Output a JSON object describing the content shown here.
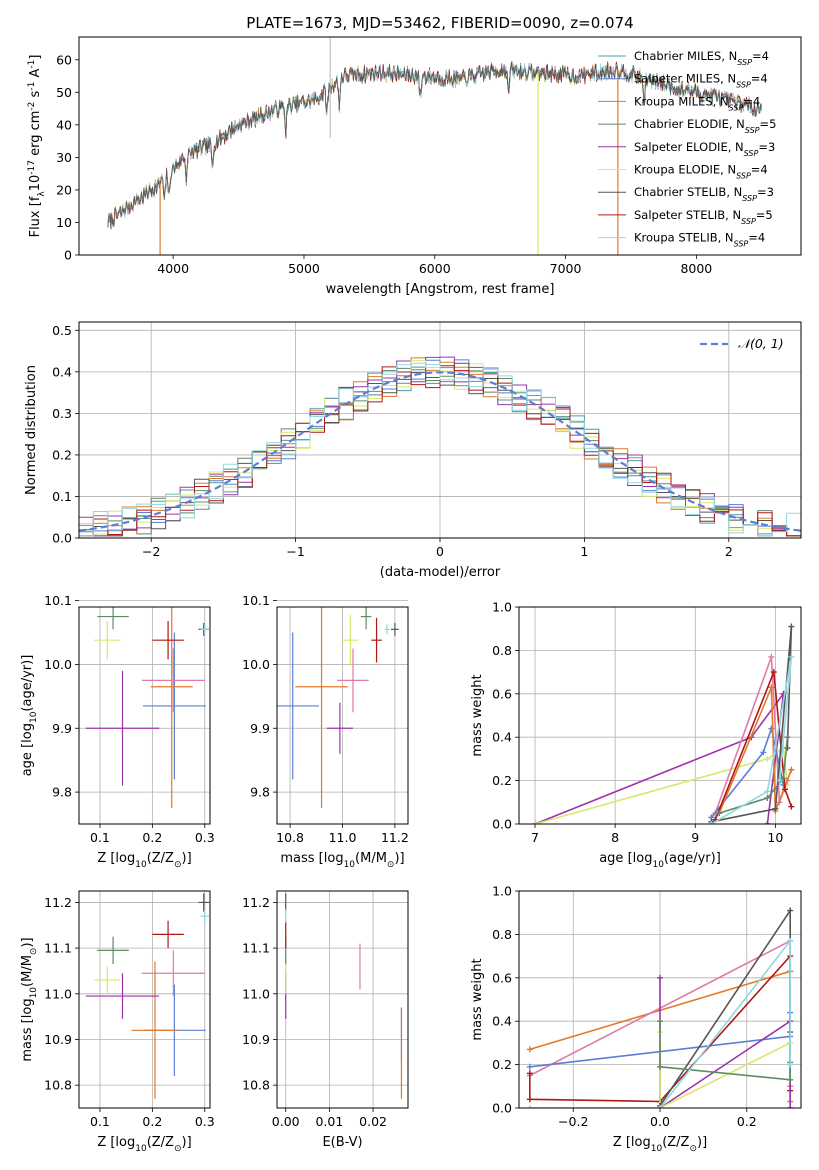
{
  "figure_title": "PLATE=1673, MJD=53462, FIBERID=0090, z=0.074",
  "series": [
    {
      "name": "Chabrier MILES, N$_{SSP}$=4",
      "label_main": "Chabrier MILES, N",
      "label_sub": "SSP",
      "label_tail": "=4",
      "color": "#4c9aa0"
    },
    {
      "name": "Salpeter MILES, N$_{SSP}$=4",
      "label_main": "Salpeter MILES, N",
      "label_sub": "SSP",
      "label_tail": "=4",
      "color": "#5a7fd6"
    },
    {
      "name": "Kroupa MILES, N$_{SSP}$=4",
      "label_main": "Kroupa MILES, N",
      "label_sub": "SSP",
      "label_tail": "=4",
      "color": "#e07a2a"
    },
    {
      "name": "Chabrier ELODIE, N$_{SSP}$=5",
      "label_main": "Chabrier ELODIE, N",
      "label_sub": "SSP",
      "label_tail": "=5",
      "color": "#5f8a66"
    },
    {
      "name": "Salpeter ELODIE, N$_{SSP}$=3",
      "label_main": "Salpeter ELODIE, N",
      "label_sub": "SSP",
      "label_tail": "=3",
      "color": "#9b35a8"
    },
    {
      "name": "Kroupa ELODIE, N$_{SSP}$=4",
      "label_main": "Kroupa ELODIE, N",
      "label_sub": "SSP",
      "label_tail": "=4",
      "color": "#d9e86a"
    },
    {
      "name": "Chabrier STELIB, N$_{SSP}$=3",
      "label_main": "Chabrier STELIB, N",
      "label_sub": "SSP",
      "label_tail": "=3",
      "color": "#555555"
    },
    {
      "name": "Salpeter STELIB, N$_{SSP}$=5",
      "label_main": "Salpeter STELIB, N",
      "label_sub": "SSP",
      "label_tail": "=5",
      "color": "#b01818"
    },
    {
      "name": "Kroupa STELIB, N$_{SSP}$=4",
      "label_main": "Kroupa STELIB, N",
      "label_sub": "SSP",
      "label_tail": "=4",
      "color": "#8fd8e0"
    }
  ],
  "chart_data": [
    {
      "id": "spectrum",
      "type": "line",
      "xlabel": "wavelength [Angstrom, rest frame]",
      "ylabel": "Flux [f$_\\lambda$10$^{-17}$ erg cm$^{-2}$ s$^{-1}$ A$^{-1}$]",
      "xlim": [
        3280,
        8800
      ],
      "ylim": [
        0,
        67
      ],
      "xticks": [
        4000,
        5000,
        6000,
        7000,
        8000
      ],
      "yticks": [
        0,
        10,
        20,
        30,
        40,
        50,
        60
      ],
      "grid": false,
      "legend": "upper right",
      "continuum_x": [
        3500,
        3700,
        3900,
        4100,
        4300,
        4500,
        4800,
        5100,
        5300,
        5600,
        5900,
        6200,
        6500,
        6800,
        7100,
        7400,
        7700,
        8000,
        8300,
        8500
      ],
      "continuum_y": [
        10,
        16,
        22,
        31,
        34,
        40,
        45,
        48,
        55,
        56,
        55,
        54,
        57,
        56,
        55,
        57,
        53,
        50,
        47,
        45
      ],
      "model_dropouts": [
        {
          "series": "Kroupa MILES, N$_{SSP}$=4",
          "x": 3900
        },
        {
          "series": "Kroupa ELODIE, N$_{SSP}$=4",
          "x": 6790
        },
        {
          "series": "Kroupa MILES, N$_{SSP}$=4",
          "x": 7400
        }
      ],
      "vertical_marker_x": 5200
    },
    {
      "id": "residual_histogram",
      "type": "step",
      "xlabel": "(data-model)/error",
      "ylabel": "Normed distribution",
      "xlim": [
        -2.5,
        2.5
      ],
      "ylim": [
        0,
        0.52
      ],
      "xticks": [
        -2,
        -1,
        0,
        1,
        2
      ],
      "yticks": [
        0.0,
        0.1,
        0.2,
        0.3,
        0.4,
        0.5
      ],
      "grid": true,
      "legend": "upper right",
      "reference_curve": {
        "name": "$\\mathcal{N}(0,1)$",
        "label_text": "𝒩(0, 1)",
        "mean": 0,
        "std": 1,
        "color": "#5a7fd6"
      },
      "bin_width": 0.1
    },
    {
      "id": "z_vs_age",
      "type": "scatter",
      "xlabel": "Z [log$_{10}$(Z/Z$_\\odot$)]",
      "ylabel": "age  [log$_{10}$(age/yr)]",
      "xlim": [
        0.06,
        0.31
      ],
      "ylim": [
        9.75,
        10.09
      ],
      "xticks": [
        0.1,
        0.2,
        0.3
      ],
      "yticks": [
        9.8,
        9.9,
        10.0,
        10.1
      ],
      "grid": true,
      "points": [
        {
          "x": 0.242,
          "y": 9.935,
          "xerr": 0.06,
          "yerr": 0.115,
          "color": "#5a7fd6"
        },
        {
          "x": 0.237,
          "y": 9.965,
          "xerr": 0.04,
          "yerr": 0.19,
          "color": "#e07a2a"
        },
        {
          "x": 0.24,
          "y": 9.975,
          "xerr": 0.06,
          "yerr": 0.05,
          "color": "#e07aa8"
        },
        {
          "x": 0.143,
          "y": 9.9,
          "xerr": 0.07,
          "yerr": 0.09,
          "color": "#9b35a8"
        },
        {
          "x": 0.114,
          "y": 10.038,
          "xerr": 0.025,
          "yerr": 0.03,
          "color": "#d9e86a"
        },
        {
          "x": 0.125,
          "y": 10.075,
          "xerr": 0.03,
          "yerr": 0.02,
          "color": "#5f8a66"
        },
        {
          "x": 0.23,
          "y": 10.038,
          "xerr": 0.03,
          "yerr": 0.03,
          "color": "#b01818"
        },
        {
          "x": 0.298,
          "y": 10.055,
          "xerr": 0.01,
          "yerr": 0.01,
          "color": "#555555"
        },
        {
          "x": 0.3,
          "y": 10.055,
          "xerr": 0.008,
          "yerr": 0.008,
          "color": "#8fd8e0"
        }
      ]
    },
    {
      "id": "mass_vs_age",
      "type": "scatter",
      "xlabel": "mass [log$_{10}$(M/M$_\\odot$)]",
      "ylabel": "",
      "xlim": [
        10.75,
        11.25
      ],
      "ylim": [
        9.75,
        10.09
      ],
      "xticks": [
        10.8,
        11.0,
        11.2
      ],
      "yticks": [
        9.8,
        9.9,
        10.0,
        10.1
      ],
      "grid": true,
      "points": [
        {
          "x": 10.81,
          "y": 9.935,
          "xerr": 0.1,
          "yerr": 0.115,
          "color": "#5a7fd6"
        },
        {
          "x": 10.92,
          "y": 9.965,
          "xerr": 0.1,
          "yerr": 0.19,
          "color": "#e07a2a"
        },
        {
          "x": 11.04,
          "y": 9.975,
          "xerr": 0.06,
          "yerr": 0.05,
          "color": "#e07aa8"
        },
        {
          "x": 10.99,
          "y": 9.9,
          "xerr": 0.05,
          "yerr": 0.04,
          "color": "#9b35a8"
        },
        {
          "x": 11.03,
          "y": 10.038,
          "xerr": 0.03,
          "yerr": 0.04,
          "color": "#d9e86a"
        },
        {
          "x": 11.09,
          "y": 10.075,
          "xerr": 0.02,
          "yerr": 0.02,
          "color": "#5f8a66"
        },
        {
          "x": 11.13,
          "y": 10.038,
          "xerr": 0.02,
          "yerr": 0.035,
          "color": "#b01818"
        },
        {
          "x": 11.2,
          "y": 10.055,
          "xerr": 0.015,
          "yerr": 0.01,
          "color": "#555555"
        },
        {
          "x": 11.17,
          "y": 10.055,
          "xerr": 0.01,
          "yerr": 0.008,
          "color": "#8fd8e0"
        }
      ]
    },
    {
      "id": "age_vs_weight",
      "type": "line",
      "xlabel": "age  [log$_{10}$(age/yr)]",
      "ylabel": "mass weight",
      "xlim": [
        6.8,
        10.32
      ],
      "ylim": [
        0,
        1.0
      ],
      "xticks": [
        7,
        8,
        9,
        10
      ],
      "yticks": [
        0.0,
        0.2,
        0.4,
        0.6,
        0.8,
        1.0
      ],
      "grid": true,
      "lines": [
        {
          "color": "#9b35a8",
          "x": [
            7.0,
            9.7,
            10.1,
            9.9
          ],
          "y": [
            0.0,
            0.4,
            0.6,
            0.0
          ]
        },
        {
          "color": "#d9e86a",
          "x": [
            7.0,
            9.9,
            10.1,
            10.15
          ],
          "y": [
            0.0,
            0.3,
            0.35,
            0.18
          ]
        },
        {
          "color": "#e07aa8",
          "x": [
            9.25,
            9.95,
            10.05,
            10.15
          ],
          "y": [
            0.05,
            0.77,
            0.1,
            0.2
          ]
        },
        {
          "color": "#5a7fd6",
          "x": [
            9.2,
            9.85,
            9.95,
            10.1
          ],
          "y": [
            0.03,
            0.33,
            0.44,
            0.18
          ]
        },
        {
          "color": "#e07a2a",
          "x": [
            9.3,
            9.95,
            10.0,
            10.2
          ],
          "y": [
            0.05,
            0.63,
            0.06,
            0.25
          ]
        },
        {
          "color": "#b01818",
          "x": [
            9.25,
            9.98,
            10.12,
            10.2
          ],
          "y": [
            0.02,
            0.7,
            0.16,
            0.08
          ]
        },
        {
          "color": "#555555",
          "x": [
            9.2,
            10.0,
            10.2,
            10.15
          ],
          "y": [
            0.01,
            0.07,
            0.91,
            0.35
          ]
        },
        {
          "color": "#5f8a66",
          "x": [
            9.3,
            9.9,
            10.1,
            10.15
          ],
          "y": [
            0.05,
            0.12,
            0.21,
            0.4
          ]
        },
        {
          "color": "#8fd8e0",
          "x": [
            9.2,
            9.9,
            10.2,
            10.05
          ],
          "y": [
            0.0,
            0.15,
            0.77,
            0.2
          ]
        }
      ]
    },
    {
      "id": "z_vs_mass",
      "type": "scatter",
      "xlabel": "Z [log$_{10}$(Z/Z$_\\odot$)]",
      "ylabel": "mass [log$_{10}$(M/M$_\\odot$)]",
      "xlim": [
        0.06,
        0.31
      ],
      "ylim": [
        10.75,
        11.225
      ],
      "xticks": [
        0.1,
        0.2,
        0.3
      ],
      "yticks": [
        10.8,
        10.9,
        11.0,
        11.1,
        11.2
      ],
      "grid": true,
      "points": [
        {
          "x": 0.242,
          "y": 10.92,
          "xerr": 0.06,
          "yerr": 0.1,
          "color": "#5a7fd6"
        },
        {
          "x": 0.205,
          "y": 10.92,
          "xerr": 0.045,
          "yerr": 0.15,
          "color": "#e07a2a"
        },
        {
          "x": 0.24,
          "y": 11.045,
          "xerr": 0.06,
          "yerr": 0.05,
          "color": "#e07aa8"
        },
        {
          "x": 0.143,
          "y": 10.995,
          "xerr": 0.07,
          "yerr": 0.05,
          "color": "#9b35a8"
        },
        {
          "x": 0.114,
          "y": 11.03,
          "xerr": 0.025,
          "yerr": 0.03,
          "color": "#d9e86a"
        },
        {
          "x": 0.125,
          "y": 11.095,
          "xerr": 0.03,
          "yerr": 0.03,
          "color": "#5f8a66"
        },
        {
          "x": 0.23,
          "y": 11.13,
          "xerr": 0.03,
          "yerr": 0.03,
          "color": "#b01818"
        },
        {
          "x": 0.298,
          "y": 11.2,
          "xerr": 0.01,
          "yerr": 0.02,
          "color": "#555555"
        },
        {
          "x": 0.3,
          "y": 11.17,
          "xerr": 0.008,
          "yerr": 0.015,
          "color": "#8fd8e0"
        }
      ]
    },
    {
      "id": "ebv_vs_mass",
      "type": "scatter",
      "xlabel": "E(B-V)",
      "ylabel": "",
      "xlim": [
        -0.002,
        0.028
      ],
      "ylim": [
        10.75,
        11.225
      ],
      "xticks": [
        0.0,
        0.01,
        0.02
      ],
      "yticks": [
        10.8,
        10.9,
        11.0,
        11.1,
        11.2
      ],
      "grid": true,
      "points": [
        {
          "x": 0.0265,
          "y": 10.91,
          "xerr": 0,
          "yerr": 0.06,
          "color": "#5a7fd6"
        },
        {
          "x": 0.0265,
          "y": 10.87,
          "xerr": 0,
          "yerr": 0.1,
          "color": "#e07a2a"
        },
        {
          "x": 0.017,
          "y": 11.06,
          "xerr": 0,
          "yerr": 0.05,
          "color": "#e07aa8"
        },
        {
          "x": 0.0,
          "y": 10.995,
          "xerr": 0,
          "yerr": 0.05,
          "color": "#9b35a8"
        },
        {
          "x": 0.0,
          "y": 11.03,
          "xerr": 0,
          "yerr": 0.03,
          "color": "#d9e86a"
        },
        {
          "x": 0.0,
          "y": 11.095,
          "xerr": 0,
          "yerr": 0.03,
          "color": "#5f8a66"
        },
        {
          "x": 0.0,
          "y": 11.13,
          "xerr": 0,
          "yerr": 0.03,
          "color": "#b01818"
        },
        {
          "x": 0.0,
          "y": 11.2,
          "xerr": 0,
          "yerr": 0.02,
          "color": "#555555"
        },
        {
          "x": 0.0,
          "y": 11.17,
          "xerr": 0,
          "yerr": 0.015,
          "color": "#8fd8e0"
        }
      ]
    },
    {
      "id": "z_vs_weight",
      "type": "line",
      "xlabel": "Z [log$_{10}$(Z/Z$_\\odot$)]",
      "ylabel": "mass weight",
      "xlim": [
        -0.325,
        0.325
      ],
      "ylim": [
        0,
        1.0
      ],
      "xticks": [
        -0.2,
        0.0,
        0.2
      ],
      "yticks": [
        0.0,
        0.2,
        0.4,
        0.6,
        0.8,
        1.0
      ],
      "grid": true,
      "lines": [
        {
          "color": "#e07a2a",
          "x": [
            -0.3,
            0.3,
            0.3
          ],
          "y": [
            0.27,
            0.63,
            0.03
          ]
        },
        {
          "color": "#e07aa8",
          "x": [
            -0.3,
            0.3,
            0.3
          ],
          "y": [
            0.15,
            0.77,
            0.1
          ]
        },
        {
          "color": "#5a7fd6",
          "x": [
            -0.3,
            0.3,
            0.3
          ],
          "y": [
            0.19,
            0.33,
            0.44
          ]
        },
        {
          "color": "#b01818",
          "x": [
            -0.3,
            -0.3,
            0.0,
            0.3,
            0.3
          ],
          "y": [
            0.16,
            0.04,
            0.03,
            0.7,
            0.08
          ]
        },
        {
          "color": "#9b35a8",
          "x": [
            0.0,
            0.0,
            0.3,
            0.3
          ],
          "y": [
            0.6,
            0.0,
            0.4,
            0.0
          ]
        },
        {
          "color": "#d9e86a",
          "x": [
            0.0,
            0.0,
            0.3
          ],
          "y": [
            0.35,
            0.0,
            0.3
          ]
        },
        {
          "color": "#555555",
          "x": [
            0.0,
            0.3,
            0.3
          ],
          "y": [
            0.01,
            0.91,
            0.35
          ]
        },
        {
          "color": "#5f8a66",
          "x": [
            0.0,
            0.0,
            0.3,
            0.3
          ],
          "y": [
            0.4,
            0.19,
            0.13,
            0.21
          ]
        },
        {
          "color": "#8fd8e0",
          "x": [
            -0.3,
            0.0,
            0.3,
            0.3
          ],
          "y": [
            0.0,
            0.0,
            0.77,
            0.2
          ]
        }
      ]
    }
  ]
}
